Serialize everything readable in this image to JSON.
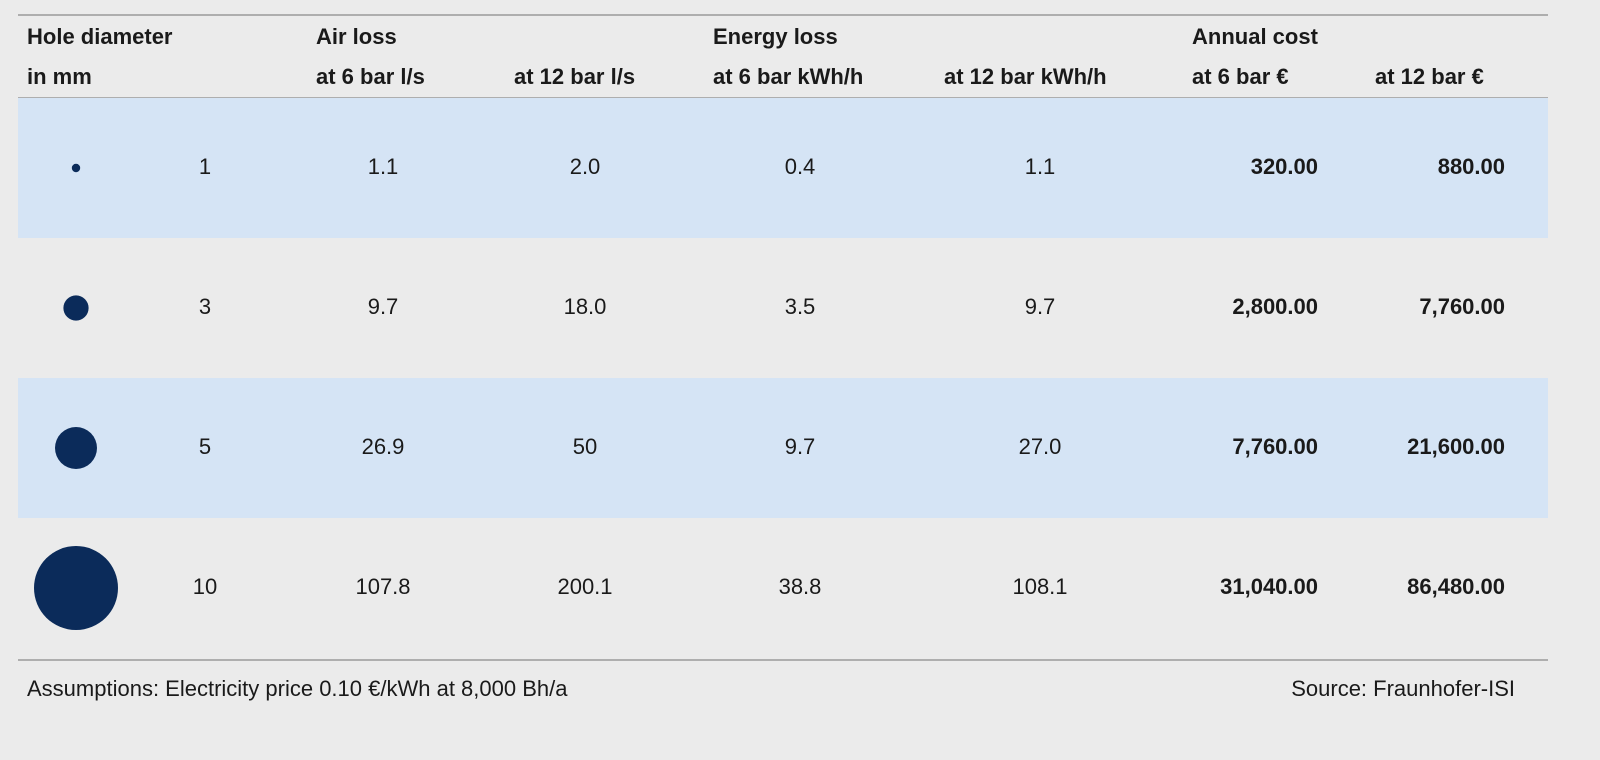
{
  "table": {
    "header": {
      "groups": [
        "Hole diameter",
        "Air loss",
        "Energy loss",
        "Annual cost"
      ],
      "columns": [
        "in mm",
        "at 6 bar l/s",
        "at 12 bar l/s",
        "at 6 bar kWh/h",
        "at 12 bar kWh/h",
        "at 6 bar €",
        "at 12 bar €"
      ]
    },
    "rows": [
      [
        "1",
        "1.1",
        "2.0",
        "0.4",
        "1.1",
        "320.00",
        "880.00"
      ],
      [
        "3",
        "9.7",
        "18.0",
        "3.5",
        "9.7",
        "2,800.00",
        "7,760.00"
      ],
      [
        "5",
        "26.9",
        "50",
        "9.7",
        "27.0",
        "7,760.00",
        "21,600.00"
      ],
      [
        "10",
        "107.8",
        "200.1",
        "38.8",
        "108.1",
        "31,040.00",
        "86,480.00"
      ]
    ]
  },
  "footer": {
    "note": "Assumptions: Electricity price 0.10 €/kWh at 8,000 Bh/a",
    "source": "Source: Fraunhofer-ISI"
  }
}
